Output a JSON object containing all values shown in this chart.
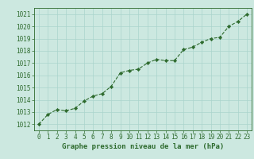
{
  "x": [
    0,
    1,
    2,
    3,
    4,
    5,
    6,
    7,
    8,
    9,
    10,
    11,
    12,
    13,
    14,
    15,
    16,
    17,
    18,
    19,
    20,
    21,
    22,
    23
  ],
  "y": [
    1012.0,
    1012.8,
    1013.2,
    1013.1,
    1013.3,
    1013.9,
    1014.3,
    1014.5,
    1015.1,
    1016.2,
    1016.4,
    1016.5,
    1017.0,
    1017.3,
    1017.2,
    1017.2,
    1018.1,
    1018.3,
    1018.7,
    1019.0,
    1019.1,
    1020.0,
    1020.4,
    1021.0
  ],
  "line_color": "#2d6a2d",
  "marker_color": "#2d6a2d",
  "bg_color": "#cce8e0",
  "grid_color": "#aad4cc",
  "xlabel": "Graphe pression niveau de la mer (hPa)",
  "xlabel_color": "#2d6a2d",
  "ylabel_ticks": [
    1012,
    1013,
    1014,
    1015,
    1016,
    1017,
    1018,
    1019,
    1020,
    1021
  ],
  "ylim": [
    1011.5,
    1021.5
  ],
  "xlim": [
    -0.5,
    23.5
  ],
  "xticks": [
    0,
    1,
    2,
    3,
    4,
    5,
    6,
    7,
    8,
    9,
    10,
    11,
    12,
    13,
    14,
    15,
    16,
    17,
    18,
    19,
    20,
    21,
    22,
    23
  ],
  "tick_fontsize": 5.5,
  "xlabel_fontsize": 6.5
}
